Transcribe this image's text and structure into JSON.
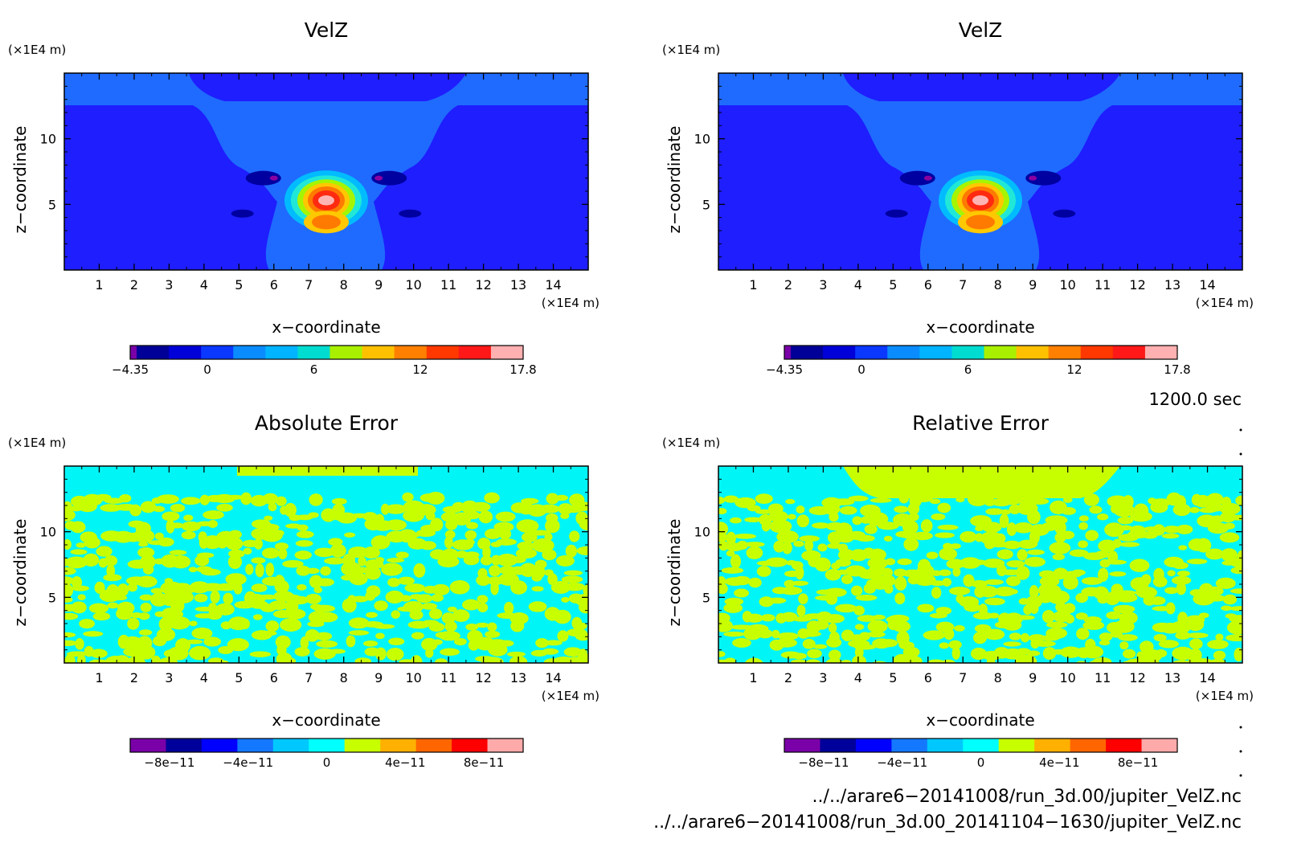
{
  "panels": [
    {
      "title": "VelZ",
      "z_unit": "(×1E4 m)",
      "x_unit": "(×1E4 m)",
      "xlabel": "x−coordinate",
      "ylabel": "z−coordinate",
      "colorbar_labels": [
        "−4.35",
        "0",
        "6",
        "12",
        "17.8"
      ]
    },
    {
      "title": "VelZ",
      "z_unit": "(×1E4 m)",
      "x_unit": "(×1E4 m)",
      "xlabel": "x−coordinate",
      "ylabel": "z−coordinate",
      "colorbar_labels": [
        "−4.35",
        "0",
        "6",
        "12",
        "17.8"
      ]
    },
    {
      "title": "Absolute Error",
      "z_unit": "(×1E4 m)",
      "x_unit": "(×1E4 m)",
      "xlabel": "x−coordinate",
      "ylabel": "z−coordinate",
      "colorbar_labels": [
        "−8e−11",
        "−4e−11",
        "0",
        "4e−11",
        "8e−11"
      ]
    },
    {
      "title": "Relative Error",
      "z_unit": "(×1E4 m)",
      "x_unit": "(×1E4 m)",
      "xlabel": "x−coordinate",
      "ylabel": "z−coordinate",
      "colorbar_labels": [
        "−8e−11",
        "−4e−11",
        "0",
        "4e−11",
        "8e−11"
      ]
    }
  ],
  "time_label": "1200.0 sec",
  "file_paths": [
    "../../arare6−20141008/run_3d.00/jupiter_VelZ.nc",
    "../../arare6−20141008/run_3d.00_20141104−1630/jupiter_VelZ.nc"
  ],
  "colors": {
    "colorbar_velz": [
      "#7a00a8",
      "#000099",
      "#0000d8",
      "#0a38ff",
      "#0a8cff",
      "#00b4ff",
      "#00dcd0",
      "#a8f000",
      "#ffc000",
      "#ff8000",
      "#ff3800",
      "#ff1818",
      "#ffb0b0"
    ],
    "colorbar_error": [
      "#7a00a8",
      "#00009a",
      "#0000ff",
      "#1478ff",
      "#00c8ff",
      "#00ffff",
      "#c8ff00",
      "#ffb000",
      "#ff6600",
      "#ff0000",
      "#ffaaaa"
    ],
    "velz_background": "#1e1eff",
    "velz_plume": "#1f6bff",
    "velz_core": [
      "#00bcff",
      "#21e8d6",
      "#a6f500",
      "#ffc800",
      "#ff7a00",
      "#ff2a10",
      "#ffb4b4"
    ],
    "velz_lobes": [
      "#0000a0",
      "#8a00a0"
    ],
    "error_cyan": "#00f6f6",
    "error_yellow": "#c8ff00"
  },
  "chart_data": [
    {
      "type": "heatmap",
      "panel": "top-left",
      "title": "VelZ",
      "xlabel": "x−coordinate",
      "ylabel": "z−coordinate",
      "unit": "×1E4 m",
      "xlim": [
        0,
        15
      ],
      "ylim": [
        0,
        15
      ],
      "xticks": [
        1,
        2,
        3,
        4,
        5,
        6,
        7,
        8,
        9,
        10,
        11,
        12,
        13,
        14
      ],
      "yticks": [
        5,
        10
      ],
      "colorbar": {
        "min": -4.35,
        "max": 17.8,
        "ticks": [
          -4.35,
          0,
          6,
          12,
          17.8
        ]
      },
      "features": {
        "updraft_center": [
          7.5,
          4.2
        ],
        "updraft_max": 17.8,
        "downdraft_lobes": [
          [
            5.7,
            4.5
          ],
          [
            9.3,
            4.5
          ]
        ],
        "downdraft_min": -4.35
      }
    },
    {
      "type": "heatmap",
      "panel": "top-right",
      "title": "VelZ",
      "xlabel": "x−coordinate",
      "ylabel": "z−coordinate",
      "unit": "×1E4 m",
      "xlim": [
        0,
        15
      ],
      "ylim": [
        0,
        15
      ],
      "xticks": [
        1,
        2,
        3,
        4,
        5,
        6,
        7,
        8,
        9,
        10,
        11,
        12,
        13,
        14
      ],
      "yticks": [
        5,
        10
      ],
      "colorbar": {
        "min": -4.35,
        "max": 17.8,
        "ticks": [
          -4.35,
          0,
          6,
          12,
          17.8
        ]
      },
      "features": {
        "updraft_center": [
          7.5,
          4.2
        ],
        "updraft_max": 17.8,
        "downdraft_lobes": [
          [
            5.7,
            4.5
          ],
          [
            9.3,
            4.5
          ]
        ],
        "downdraft_min": -4.35
      }
    },
    {
      "type": "heatmap",
      "panel": "bottom-left",
      "title": "Absolute Error",
      "xlabel": "x−coordinate",
      "ylabel": "z−coordinate",
      "unit": "×1E4 m",
      "xlim": [
        0,
        15
      ],
      "ylim": [
        0,
        15
      ],
      "xticks": [
        1,
        2,
        3,
        4,
        5,
        6,
        7,
        8,
        9,
        10,
        11,
        12,
        13,
        14
      ],
      "yticks": [
        5,
        10
      ],
      "colorbar": {
        "min": -1e-10,
        "max": 1e-10,
        "ticks": [
          -8e-11,
          -4e-11,
          0,
          4e-11,
          8e-11
        ]
      },
      "features": {
        "pattern": "noisy mixture of 0 and 0 to 4e-11 values"
      }
    },
    {
      "type": "heatmap",
      "panel": "bottom-right",
      "title": "Relative Error",
      "xlabel": "x−coordinate",
      "ylabel": "z−coordinate",
      "unit": "×1E4 m",
      "xlim": [
        0,
        15
      ],
      "ylim": [
        0,
        15
      ],
      "xticks": [
        1,
        2,
        3,
        4,
        5,
        6,
        7,
        8,
        9,
        10,
        11,
        12,
        13,
        14
      ],
      "yticks": [
        5,
        10
      ],
      "colorbar": {
        "min": -1e-10,
        "max": 1e-10,
        "ticks": [
          -8e-11,
          -4e-11,
          0,
          4e-11,
          8e-11
        ]
      },
      "features": {
        "pattern": "noisy mixture of 0 and 0 to 4e-11 values"
      }
    }
  ]
}
